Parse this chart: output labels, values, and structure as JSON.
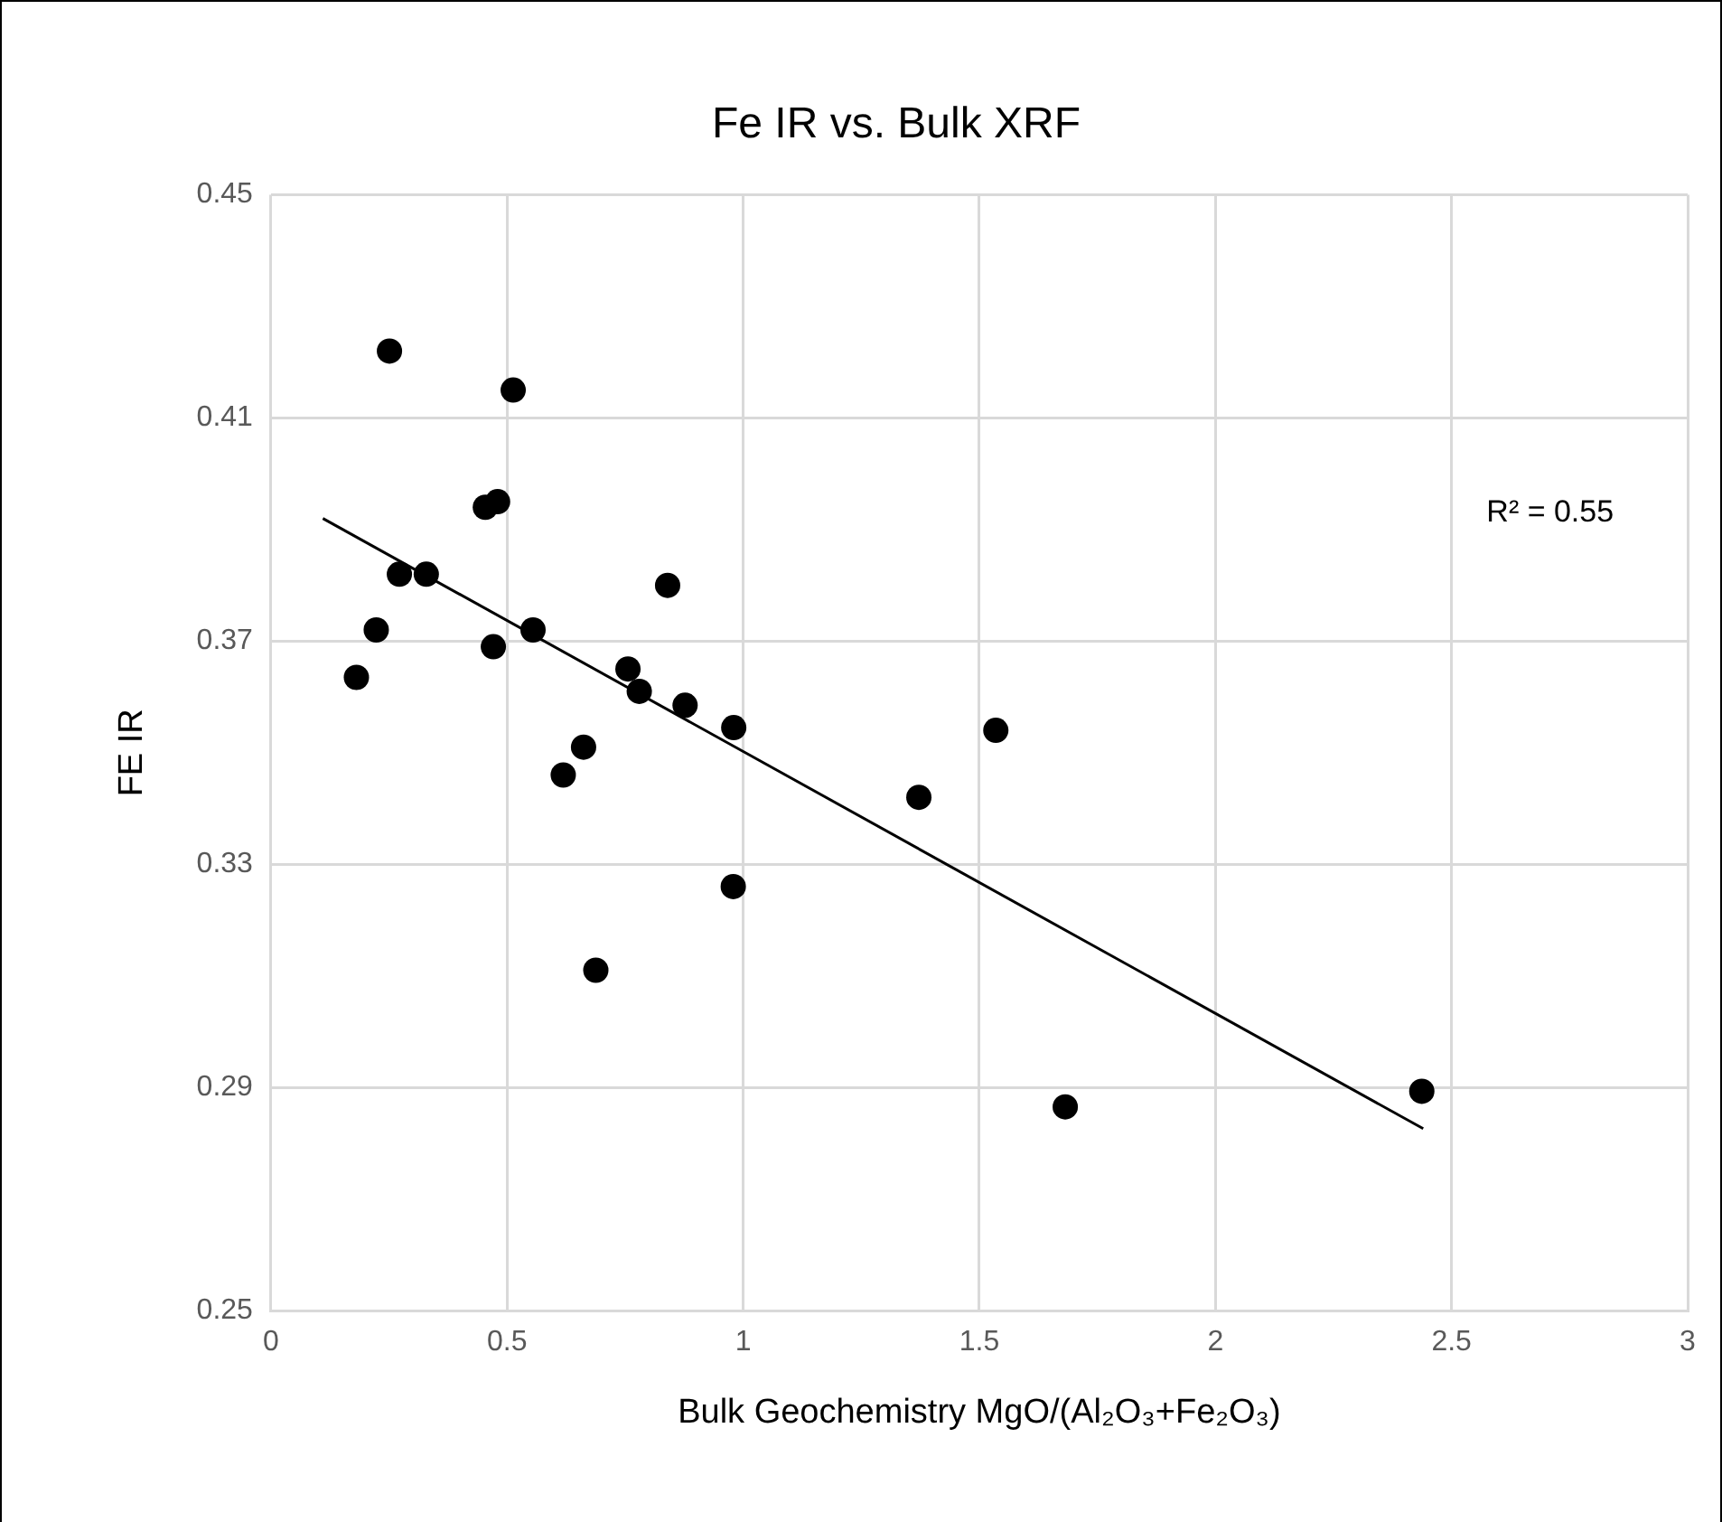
{
  "chart_data": {
    "type": "scatter",
    "title": "Fe IR vs. Bulk XRF",
    "xlabel": "Bulk Geochemistry MgO/(Al₂O₃+Fe₂O₃)",
    "ylabel": "FE IR",
    "annotations": [
      "R² = 0.55"
    ],
    "series": [
      {
        "type": "scatter",
        "color": "#000000",
        "marker": "circle",
        "x": [
          0.251,
          0.513,
          0.454,
          0.48,
          0.272,
          0.329,
          0.84,
          0.223,
          0.471,
          0.555,
          0.181,
          0.756,
          0.78,
          0.877,
          0.98,
          1.535,
          0.662,
          0.619,
          1.372,
          0.979,
          0.688,
          1.682,
          2.437
        ],
        "values": [
          0.422,
          0.415,
          0.394,
          0.395,
          0.382,
          0.382,
          0.38,
          0.372,
          0.369,
          0.372,
          0.3635,
          0.365,
          0.361,
          0.3585,
          0.3545,
          0.354,
          0.351,
          0.346,
          0.342,
          0.326,
          0.311,
          0.2865,
          0.2893
        ]
      },
      {
        "type": "line",
        "color": "#000000",
        "marker": "none",
        "line_style": "solid",
        "x": [
          0.11,
          2.44
        ],
        "values": [
          0.392,
          0.2826
        ]
      }
    ],
    "xlim": [
      0,
      3
    ],
    "xticks": [
      0,
      0.5,
      1,
      1.5,
      2,
      2.5,
      3
    ],
    "ylim": [
      0.25,
      0.45
    ],
    "yticks": [
      0.25,
      0.29,
      0.33,
      0.37,
      0.41,
      0.45
    ],
    "grid": true,
    "legend": false
  }
}
